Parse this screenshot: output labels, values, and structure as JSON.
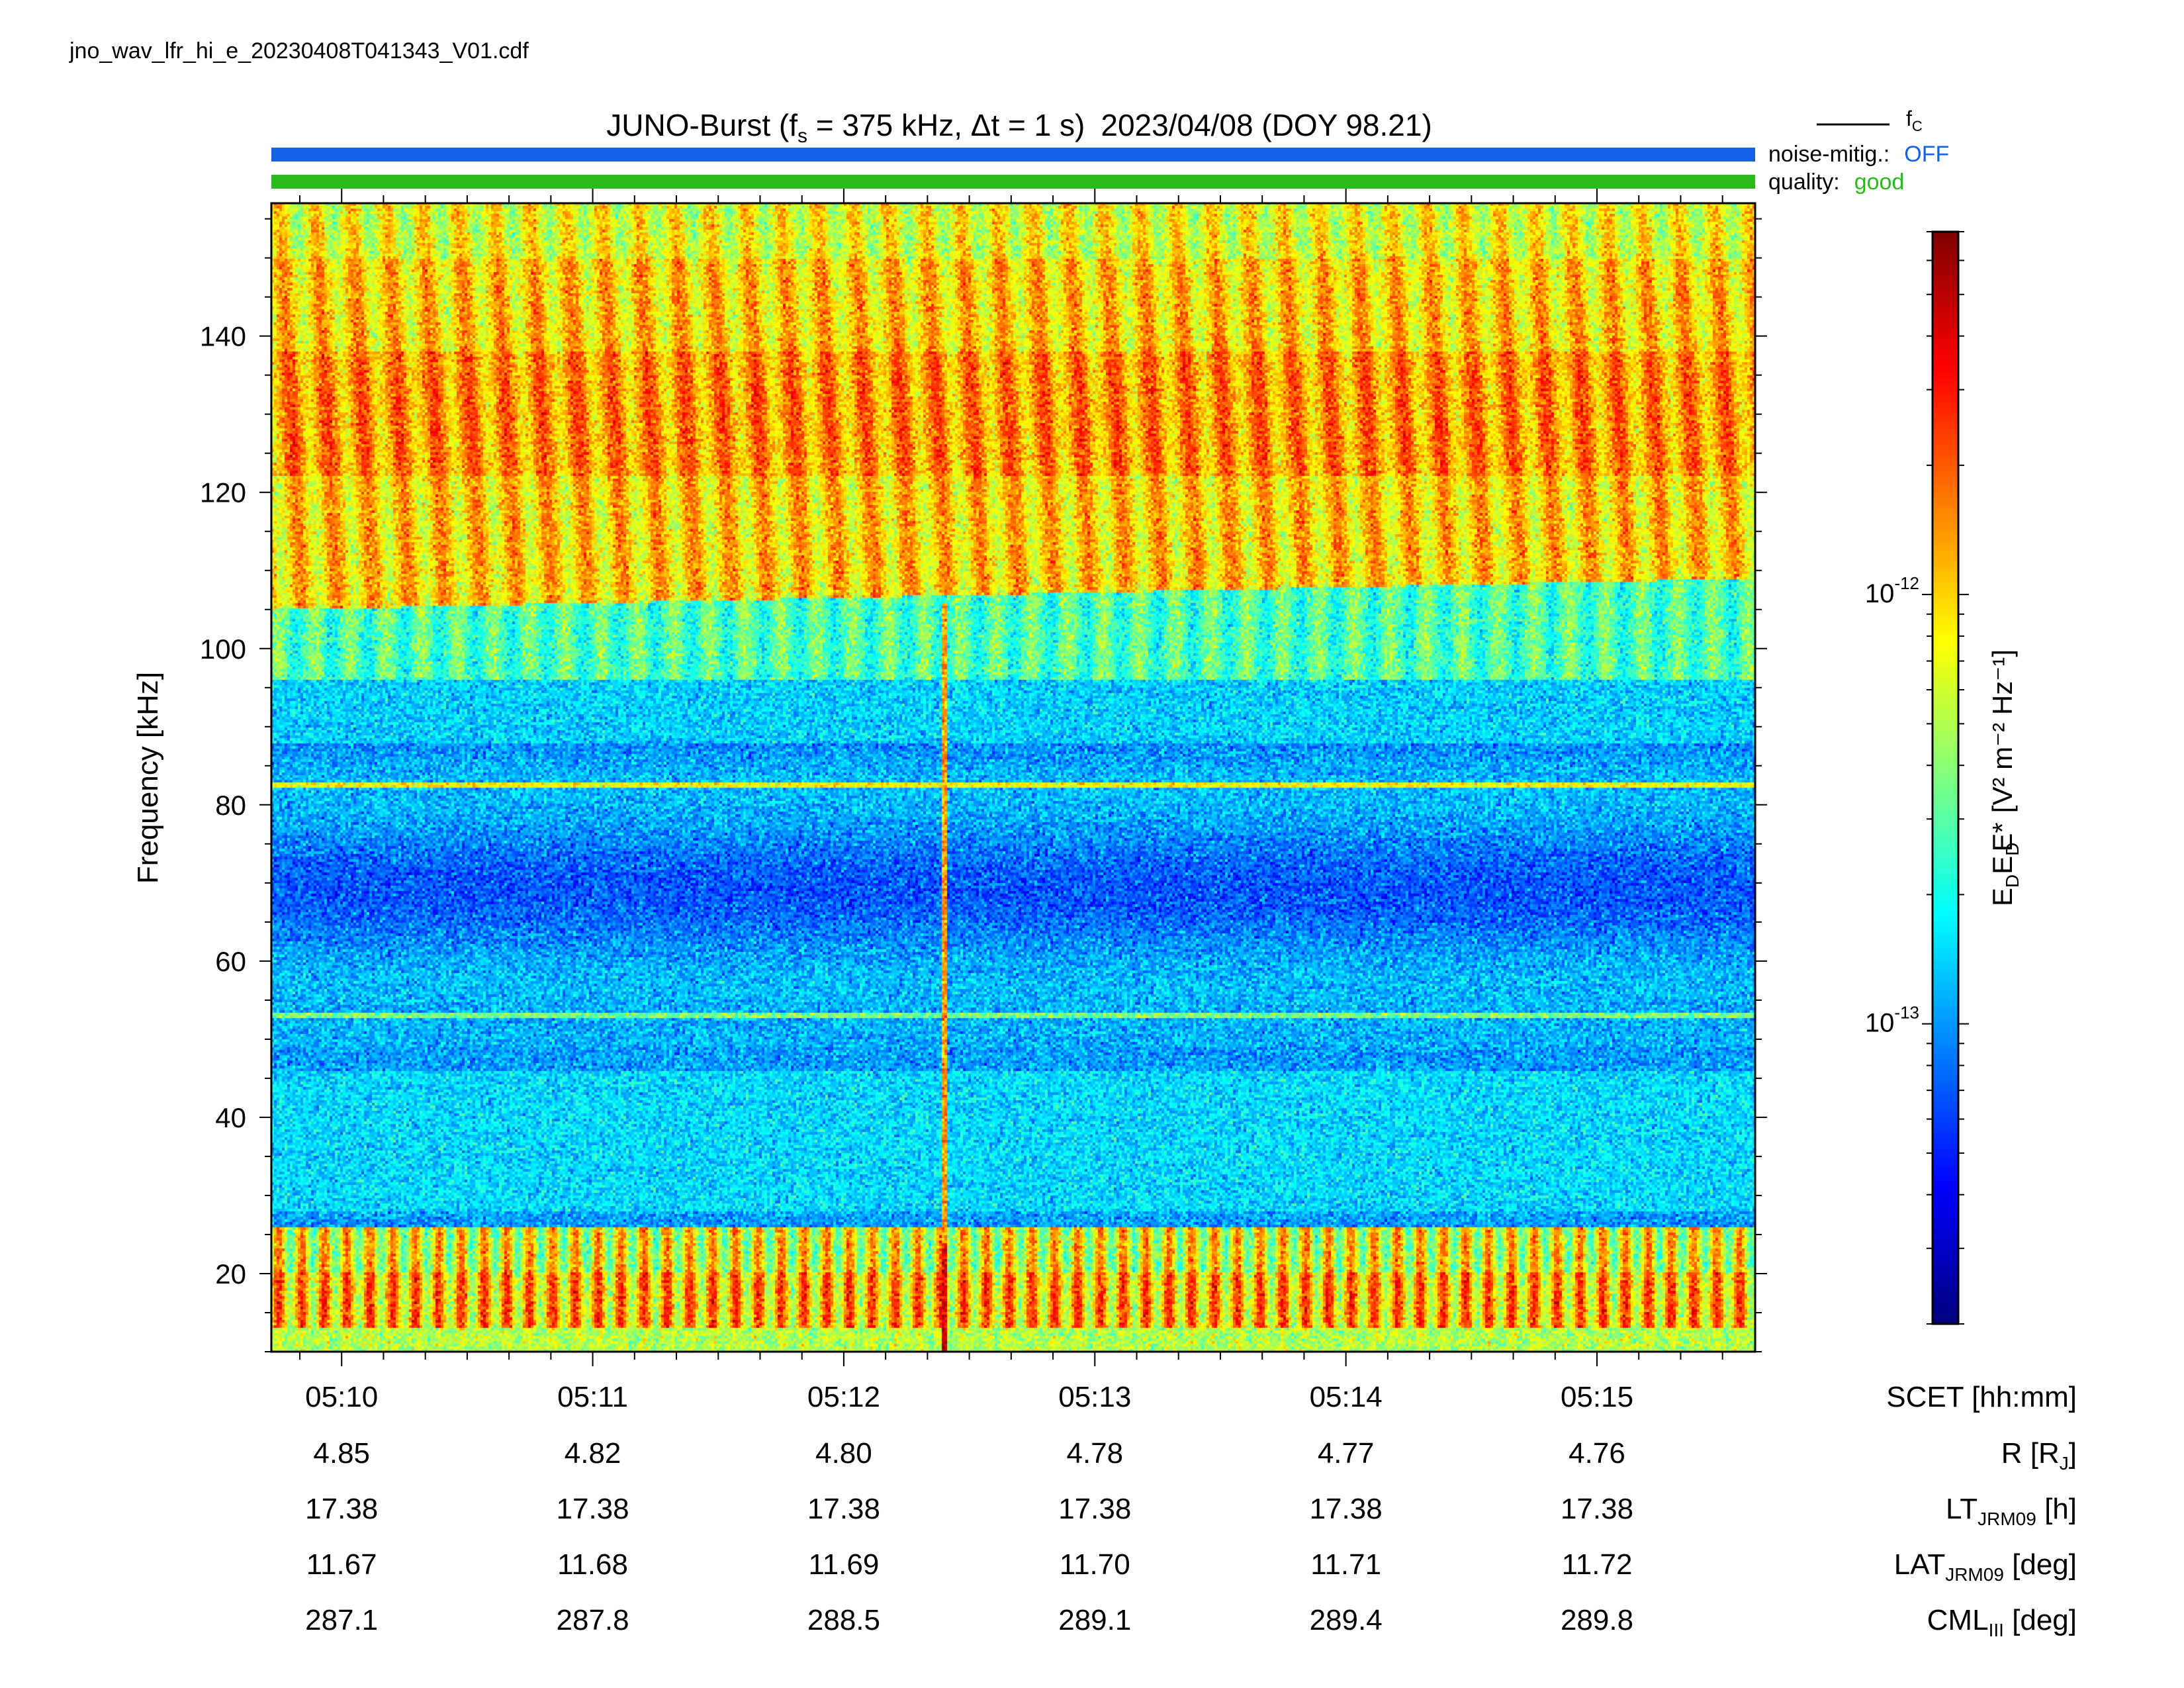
{
  "filename": "jno_wav_lfr_hi_e_20230408T041343_V01.cdf",
  "title": {
    "instrument": "JUNO-Burst",
    "fs_symbol": "f",
    "fs_sub": "s",
    "fs_text": " = 375 kHz, Δt = 1 s)",
    "date_text": "2023/04/08 (DOY 98.21)"
  },
  "legend": {
    "fc_symbol": "f",
    "fc_sub": "C",
    "noise_label": "noise-mitig.:",
    "noise_value": "OFF",
    "quality_label": "quality:",
    "quality_value": "good"
  },
  "colors": {
    "noise_bar": "#1460e6",
    "quality_bar": "#2db81b",
    "noise_text": "#1460e6",
    "quality_text": "#2db81b"
  },
  "chart_data": {
    "type": "heatmap",
    "title": "JUNO-Burst (fs = 375 kHz, Δt = 1 s)  2023/04/08 (DOY 98.21)",
    "ylabel": "Frequency [kHz]",
    "ylim": [
      10,
      157
    ],
    "y_ticks": [
      20,
      40,
      60,
      80,
      100,
      120,
      140
    ],
    "x_ticks": [
      "05:10",
      "05:11",
      "05:12",
      "05:13",
      "05:14",
      "05:15"
    ],
    "x_range_minutes": [
      9.72,
      15.63
    ],
    "colorbar": {
      "label_main": "E",
      "label_sub": "D",
      "label_rest": "E*",
      "label_units": "[V² m⁻² Hz⁻¹]",
      "scale": "log",
      "ticks": [
        {
          "base": "10",
          "exp": "-12",
          "value": 1e-12
        },
        {
          "base": "10",
          "exp": "-13",
          "value": 1e-13
        }
      ],
      "range": [
        2e-14,
        7e-12
      ],
      "colormap": "jet"
    },
    "features": {
      "lower_band_kHz": [
        10,
        26
      ],
      "upper_band_kHz": [
        105,
        157
      ],
      "narrowband_lines_kHz": [
        82.5,
        53
      ],
      "vertical_burst_time": "05:12:24"
    },
    "ephemeris": {
      "rows": [
        {
          "label_main": "SCET",
          "label_sub": "",
          "label_rest": " [hh:mm]",
          "values": [
            "05:10",
            "05:11",
            "05:12",
            "05:13",
            "05:14",
            "05:15"
          ]
        },
        {
          "label_main": "R [R",
          "label_sub": "J",
          "label_rest": "]",
          "values": [
            "4.85",
            "4.82",
            "4.80",
            "4.78",
            "4.77",
            "4.76"
          ]
        },
        {
          "label_main": "LT",
          "label_sub": "JRM09",
          "label_rest": " [h]",
          "values": [
            "17.38",
            "17.38",
            "17.38",
            "17.38",
            "17.38",
            "17.38"
          ]
        },
        {
          "label_main": "LAT",
          "label_sub": "JRM09",
          "label_rest": " [deg]",
          "values": [
            "11.67",
            "11.68",
            "11.69",
            "11.70",
            "11.71",
            "11.72"
          ]
        },
        {
          "label_main": "CML",
          "label_sub": "III",
          "label_rest": " [deg]",
          "values": [
            "287.1",
            "287.8",
            "288.5",
            "289.1",
            "289.4",
            "289.8"
          ]
        }
      ]
    }
  }
}
